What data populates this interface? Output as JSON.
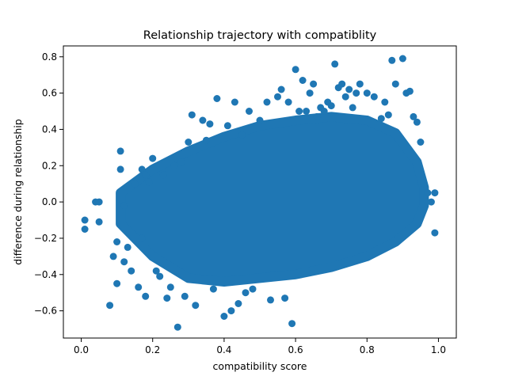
{
  "chart_data": {
    "type": "scatter",
    "title": "Relationship trajectory with compatiblity",
    "xlabel": "compatibility score",
    "ylabel": "difference during relationship",
    "xlim": [
      -0.05,
      1.05
    ],
    "ylim": [
      -0.75,
      0.86
    ],
    "xticks": [
      0.0,
      0.2,
      0.4,
      0.6,
      0.8,
      1.0
    ],
    "xtick_labels": [
      "0.0",
      "0.2",
      "0.4",
      "0.6",
      "0.8",
      "1.0"
    ],
    "yticks": [
      -0.6,
      -0.4,
      -0.2,
      0.0,
      0.2,
      0.4,
      0.6,
      0.8
    ],
    "ytick_labels": [
      "−0.6",
      "−0.4",
      "−0.2",
      "0.0",
      "0.2",
      "0.4",
      "0.6",
      "0.8"
    ],
    "grid": false,
    "legend": "none",
    "marker_color": "#1f77b4",
    "series": [
      {
        "x": [
          0.01,
          0.01,
          0.04,
          0.05,
          0.05,
          0.08,
          0.09,
          0.1,
          0.1,
          0.11,
          0.11,
          0.12,
          0.12,
          0.13,
          0.14,
          0.15,
          0.16,
          0.17,
          0.17,
          0.18,
          0.18,
          0.19,
          0.2,
          0.21,
          0.22,
          0.23,
          0.24,
          0.25,
          0.26,
          0.27,
          0.28,
          0.29,
          0.3,
          0.31,
          0.32,
          0.34,
          0.35,
          0.36,
          0.37,
          0.38,
          0.4,
          0.41,
          0.42,
          0.43,
          0.44,
          0.45,
          0.46,
          0.47,
          0.48,
          0.5,
          0.52,
          0.53,
          0.55,
          0.56,
          0.57,
          0.58,
          0.59,
          0.6,
          0.61,
          0.62,
          0.63,
          0.64,
          0.65,
          0.66,
          0.67,
          0.68,
          0.69,
          0.7,
          0.71,
          0.72,
          0.73,
          0.74,
          0.75,
          0.76,
          0.77,
          0.78,
          0.8,
          0.82,
          0.84,
          0.85,
          0.86,
          0.87,
          0.88,
          0.9,
          0.91,
          0.92,
          0.93,
          0.94,
          0.95,
          0.96,
          0.97,
          0.98,
          0.99,
          0.99
        ],
        "y": [
          -0.1,
          -0.15,
          0.0,
          0.0,
          -0.11,
          -0.57,
          -0.3,
          -0.22,
          -0.45,
          0.28,
          0.18,
          -0.02,
          -0.33,
          -0.25,
          -0.38,
          0.1,
          -0.47,
          0.18,
          -0.2,
          0.15,
          -0.52,
          0.11,
          0.24,
          -0.38,
          -0.41,
          0.15,
          -0.53,
          -0.47,
          0.2,
          -0.69,
          0.22,
          -0.52,
          0.33,
          0.48,
          -0.57,
          0.45,
          0.34,
          0.43,
          -0.48,
          0.57,
          -0.63,
          0.42,
          -0.6,
          0.55,
          -0.56,
          0.37,
          -0.5,
          0.5,
          -0.48,
          0.45,
          0.55,
          -0.54,
          0.58,
          0.62,
          -0.53,
          0.55,
          -0.67,
          0.73,
          0.5,
          0.67,
          0.5,
          0.6,
          0.65,
          0.47,
          0.52,
          0.5,
          0.55,
          0.53,
          0.76,
          0.63,
          0.65,
          0.58,
          0.62,
          0.52,
          0.6,
          0.65,
          0.6,
          0.58,
          0.46,
          0.55,
          0.48,
          0.78,
          0.65,
          0.79,
          0.6,
          0.61,
          0.47,
          0.44,
          0.33,
          0.1,
          0.05,
          0.0,
          -0.17,
          0.05
        ]
      }
    ]
  }
}
